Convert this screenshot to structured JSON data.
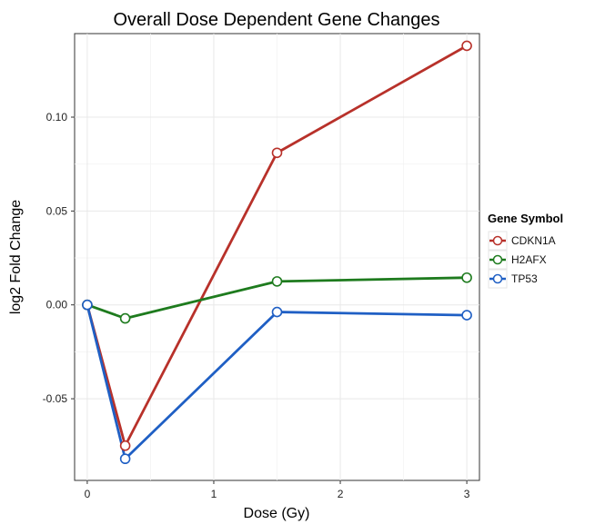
{
  "chart_data": {
    "type": "line",
    "title": "Overall Dose Dependent Gene Changes",
    "xlabel": "Dose (Gy)",
    "ylabel": "log2 Fold Change",
    "xlim": [
      -0.1,
      3.1
    ],
    "ylim": [
      -0.0935,
      0.1445
    ],
    "xticks": [
      0,
      1,
      2,
      3
    ],
    "xtick_labels": [
      "0",
      "1",
      "2",
      "3"
    ],
    "yticks": [
      -0.05,
      0.0,
      0.05,
      0.1
    ],
    "ytick_labels": [
      "-0.05",
      "0.00",
      "0.05",
      "0.10"
    ],
    "grid": true,
    "legend": {
      "title": "Gene Symbol",
      "position": "right"
    },
    "x": [
      0,
      0.3,
      1.5,
      3
    ],
    "series": [
      {
        "name": "CDKN1A",
        "color": "#b8312a",
        "values": [
          0.0,
          -0.075,
          0.081,
          0.138
        ]
      },
      {
        "name": "H2AFX",
        "color": "#1e7b1e",
        "values": [
          0.0,
          -0.0072,
          0.0125,
          0.0145
        ]
      },
      {
        "name": "TP53",
        "color": "#1f5fc4",
        "values": [
          0.0,
          -0.082,
          -0.0038,
          -0.0055
        ]
      }
    ]
  }
}
